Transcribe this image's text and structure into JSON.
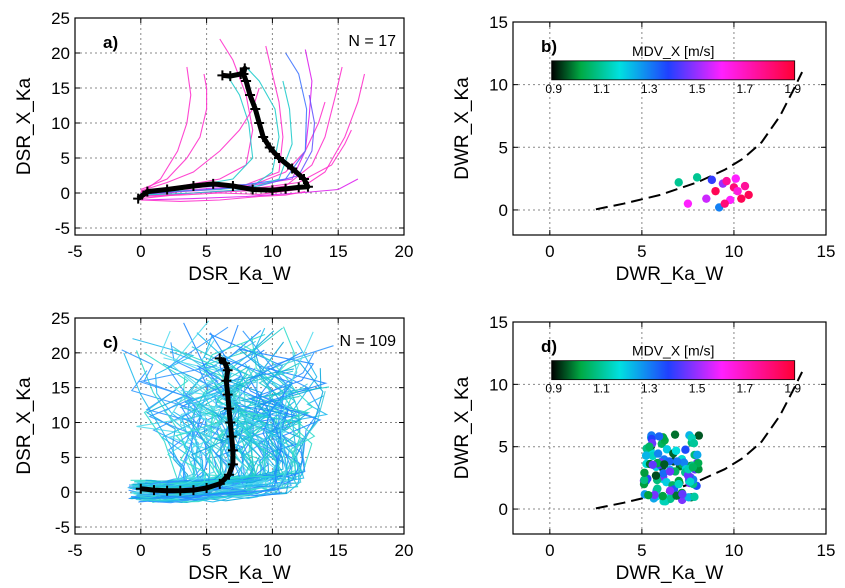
{
  "chart_data": [
    {
      "panel": "a",
      "type": "line",
      "panel_label": "a)",
      "annotation": "N = 17",
      "xlabel": "DSR_Ka_W",
      "ylabel": "DSR_X_Ka",
      "xlim": [
        -5,
        20
      ],
      "ylim": [
        -6,
        25
      ],
      "xticks": [
        "-5",
        "0",
        "5",
        "10",
        "15",
        "20"
      ],
      "yticks": [
        "-5",
        "0",
        "5",
        "10",
        "15",
        "20",
        "25"
      ],
      "grid": true,
      "mean_curve": [
        [
          -0.2,
          -0.8
        ],
        [
          0.5,
          0.2
        ],
        [
          2,
          0.5
        ],
        [
          4,
          1
        ],
        [
          5.5,
          1.3
        ],
        [
          7,
          1
        ],
        [
          8.5,
          0.5
        ],
        [
          10,
          0.4
        ],
        [
          11,
          0.6
        ],
        [
          12,
          0.8
        ],
        [
          12.7,
          0.9
        ],
        [
          12.4,
          2
        ],
        [
          11.5,
          3.5
        ],
        [
          10.5,
          5
        ],
        [
          9.8,
          6.5
        ],
        [
          9.3,
          8
        ],
        [
          9,
          10
        ],
        [
          8.7,
          12
        ],
        [
          8.3,
          14
        ],
        [
          8,
          16
        ],
        [
          7.8,
          17
        ],
        [
          7.9,
          17.8
        ],
        [
          7.6,
          17
        ],
        [
          6.8,
          16.7
        ],
        [
          6.2,
          16.8
        ]
      ],
      "traces": [
        {
          "color": "#ff33cc",
          "points": [
            [
              0,
              -0.5
            ],
            [
              3,
              -0.3
            ],
            [
              6,
              0
            ],
            [
              9,
              -0.2
            ],
            [
              12,
              0.5
            ],
            [
              14,
              3
            ],
            [
              15.5,
              8
            ],
            [
              16.5,
              13
            ],
            [
              17,
              17
            ]
          ]
        },
        {
          "color": "#ff33cc",
          "points": [
            [
              0,
              -0.8
            ],
            [
              4,
              0
            ],
            [
              8,
              0.3
            ],
            [
              11,
              1
            ],
            [
              13,
              4
            ],
            [
              14,
              8
            ],
            [
              14.8,
              14
            ],
            [
              15.3,
              18
            ]
          ]
        },
        {
          "color": "#dd22ee",
          "points": [
            [
              0,
              -0.3
            ],
            [
              4,
              0.5
            ],
            [
              8,
              1
            ],
            [
              11.5,
              2
            ],
            [
              12.5,
              6
            ],
            [
              12.8,
              11
            ],
            [
              13,
              16
            ],
            [
              12.5,
              20.5
            ]
          ]
        },
        {
          "color": "#ff33cc",
          "points": [
            [
              0,
              0
            ],
            [
              4,
              0.8
            ],
            [
              8,
              1.2
            ],
            [
              10.5,
              3
            ],
            [
              10.8,
              8
            ],
            [
              10.5,
              13
            ],
            [
              10,
              17
            ],
            [
              9.5,
              21
            ]
          ]
        },
        {
          "color": "#ff33cc",
          "points": [
            [
              0,
              0.2
            ],
            [
              3,
              1
            ],
            [
              6,
              2
            ],
            [
              8,
              4
            ],
            [
              8.5,
              9
            ],
            [
              8,
              14
            ],
            [
              7,
              19
            ],
            [
              6,
              22
            ]
          ]
        },
        {
          "color": "#ff33cc",
          "points": [
            [
              0,
              -0.5
            ],
            [
              3,
              0.2
            ],
            [
              6,
              0.5
            ],
            [
              9,
              1.5
            ],
            [
              11,
              3
            ],
            [
              12.5,
              6
            ],
            [
              13.5,
              10
            ],
            [
              14,
              13
            ]
          ]
        },
        {
          "color": "#22cccc",
          "points": [
            [
              0,
              -0.2
            ],
            [
              3,
              0.3
            ],
            [
              6,
              0.5
            ],
            [
              8.5,
              1
            ],
            [
              10,
              3
            ],
            [
              10.5,
              8
            ],
            [
              10.2,
              12
            ],
            [
              9,
              16
            ],
            [
              8,
              18
            ]
          ]
        },
        {
          "color": "#22cccc",
          "points": [
            [
              0,
              0
            ],
            [
              4,
              1
            ],
            [
              7,
              2
            ],
            [
              8.5,
              5
            ],
            [
              8.2,
              10
            ],
            [
              7.5,
              14
            ],
            [
              6.5,
              17
            ]
          ]
        },
        {
          "color": "#4477ff",
          "points": [
            [
              0,
              0
            ],
            [
              4,
              0.8
            ],
            [
              8,
              1.2
            ],
            [
              11,
              2
            ],
            [
              12.5,
              6
            ],
            [
              12.6,
              12
            ],
            [
              12,
              17
            ],
            [
              11,
              20
            ]
          ]
        },
        {
          "color": "#6655ff",
          "points": [
            [
              0,
              -0.2
            ],
            [
              5,
              0.5
            ],
            [
              9,
              1
            ],
            [
              12,
              2.5
            ],
            [
              13,
              6
            ],
            [
              13.2,
              10
            ],
            [
              12.8,
              14
            ]
          ]
        },
        {
          "color": "#ff33cc",
          "points": [
            [
              0,
              0.5
            ],
            [
              2,
              2
            ],
            [
              3.5,
              5
            ],
            [
              4.5,
              8
            ],
            [
              5,
              12
            ],
            [
              5,
              15
            ],
            [
              4.8,
              17
            ]
          ]
        },
        {
          "color": "#ff33cc",
          "points": [
            [
              0,
              0.3
            ],
            [
              2,
              1.5
            ],
            [
              4,
              3
            ],
            [
              6,
              6
            ],
            [
              7.5,
              9
            ],
            [
              8.5,
              12
            ],
            [
              9,
              15
            ]
          ]
        },
        {
          "color": "#ff33cc",
          "points": [
            [
              0,
              0
            ],
            [
              1.5,
              2
            ],
            [
              2.8,
              6
            ],
            [
              3.5,
              10
            ],
            [
              3.8,
              14
            ],
            [
              3.5,
              18
            ]
          ]
        },
        {
          "color": "#ff33cc",
          "points": [
            [
              0,
              -0.5
            ],
            [
              4,
              0
            ],
            [
              8,
              0.5
            ],
            [
              12,
              1.5
            ],
            [
              14.5,
              4
            ],
            [
              15.5,
              7
            ],
            [
              16,
              9
            ]
          ]
        },
        {
          "color": "#22cccc",
          "points": [
            [
              0,
              -0.3
            ],
            [
              4,
              0
            ],
            [
              8,
              0.5
            ],
            [
              10.5,
              2
            ],
            [
              11.5,
              7
            ],
            [
              11.3,
              12
            ],
            [
              10.8,
              16
            ]
          ]
        },
        {
          "color": "#dd22ee",
          "points": [
            [
              0,
              -1
            ],
            [
              4,
              -0.8
            ],
            [
              8,
              -0.5
            ],
            [
              12,
              0
            ],
            [
              15,
              0.5
            ],
            [
              16.5,
              2
            ]
          ]
        },
        {
          "color": "#ff33cc",
          "points": [
            [
              0,
              -1
            ],
            [
              3,
              -1.2
            ],
            [
              6,
              -1
            ],
            [
              9,
              -0.5
            ],
            [
              11,
              -0.3
            ],
            [
              12.5,
              0.2
            ]
          ]
        }
      ]
    },
    {
      "panel": "b",
      "type": "scatter",
      "panel_label": "b)",
      "xlabel": "DWR_Ka_W",
      "ylabel": "DWR_X_Ka",
      "xlim": [
        -2,
        15
      ],
      "ylim": [
        -2,
        15
      ],
      "xticks": [
        "0",
        "5",
        "10",
        "15"
      ],
      "yticks": [
        "0",
        "5",
        "10",
        "15"
      ],
      "grid": true,
      "colorbar": {
        "title": "MDV_X [m/s]",
        "range": [
          0.9,
          1.9
        ],
        "ticks": [
          "0.9",
          "1.1",
          "1.3",
          "1.5",
          "1.7",
          "1.9"
        ]
      },
      "reference_curve": [
        [
          2.5,
          0.05
        ],
        [
          4,
          0.5
        ],
        [
          6,
          1.2
        ],
        [
          8,
          2.2
        ],
        [
          9.5,
          3.2
        ],
        [
          10.5,
          4.1
        ],
        [
          11.5,
          5.4
        ],
        [
          12.5,
          7.5
        ],
        [
          13.2,
          9.5
        ],
        [
          13.7,
          11
        ]
      ],
      "points": [
        {
          "x": 7.5,
          "y": 0.5,
          "c": 1.6
        },
        {
          "x": 8,
          "y": 2.6,
          "c": 1.1
        },
        {
          "x": 8.8,
          "y": 2.4,
          "c": 1.4
        },
        {
          "x": 9,
          "y": 1.5,
          "c": 1.85
        },
        {
          "x": 9.2,
          "y": 0.2,
          "c": 1.3
        },
        {
          "x": 9.4,
          "y": 2.1,
          "c": 1.5
        },
        {
          "x": 9.6,
          "y": 2.3,
          "c": 1.75
        },
        {
          "x": 9.8,
          "y": 0.8,
          "c": 1.6
        },
        {
          "x": 10,
          "y": 1.8,
          "c": 1.8
        },
        {
          "x": 10.2,
          "y": 1.5,
          "c": 1.65
        },
        {
          "x": 10.4,
          "y": 0.9,
          "c": 1.85
        },
        {
          "x": 10.6,
          "y": 1.9,
          "c": 1.75
        },
        {
          "x": 10.8,
          "y": 1.2,
          "c": 1.85
        },
        {
          "x": 7,
          "y": 2.2,
          "c": 1.1
        },
        {
          "x": 9.5,
          "y": 0.5,
          "c": 1.8
        },
        {
          "x": 8.5,
          "y": 0.9,
          "c": 1.55
        },
        {
          "x": 10.1,
          "y": 2.5,
          "c": 1.6
        }
      ]
    },
    {
      "panel": "c",
      "type": "line",
      "panel_label": "c)",
      "annotation": "N = 109",
      "xlabel": "DSR_Ka_W",
      "ylabel": "DSR_X_Ka",
      "xlim": [
        -5,
        20
      ],
      "ylim": [
        -6,
        25
      ],
      "xticks": [
        "-5",
        "0",
        "5",
        "10",
        "15",
        "20"
      ],
      "yticks": [
        "-5",
        "0",
        "5",
        "10",
        "15",
        "20",
        "25"
      ],
      "grid": true,
      "mean_curve": [
        [
          0,
          0.5
        ],
        [
          1,
          0.3
        ],
        [
          2,
          0.2
        ],
        [
          3,
          0.2
        ],
        [
          4,
          0.3
        ],
        [
          5,
          0.6
        ],
        [
          6,
          1.2
        ],
        [
          6.7,
          2.5
        ],
        [
          7,
          4
        ],
        [
          7,
          6
        ],
        [
          6.9,
          8
        ],
        [
          6.8,
          10
        ],
        [
          6.7,
          12
        ],
        [
          6.6,
          14
        ],
        [
          6.5,
          16
        ],
        [
          6.6,
          17.5
        ],
        [
          6.4,
          18.5
        ],
        [
          6,
          19.2
        ]
      ],
      "traces": []
    },
    {
      "panel": "d",
      "type": "scatter",
      "panel_label": "d)",
      "xlabel": "DWR_Ka_W",
      "ylabel": "DWR_X_Ka",
      "xlim": [
        -2,
        15
      ],
      "ylim": [
        -2,
        15
      ],
      "xticks": [
        "0",
        "5",
        "10",
        "15"
      ],
      "yticks": [
        "0",
        "5",
        "10",
        "15"
      ],
      "grid": true,
      "colorbar": {
        "title": "MDV_X [m/s]",
        "range": [
          0.9,
          1.9
        ],
        "ticks": [
          "0.9",
          "1.1",
          "1.3",
          "1.5",
          "1.7",
          "1.9"
        ]
      },
      "reference_curve": [
        [
          2.5,
          0.05
        ],
        [
          4,
          0.5
        ],
        [
          6,
          1.2
        ],
        [
          8,
          2.2
        ],
        [
          9.5,
          3.2
        ],
        [
          10.5,
          4.1
        ],
        [
          11.5,
          5.4
        ],
        [
          12.5,
          7.5
        ],
        [
          13.2,
          9.5
        ],
        [
          13.7,
          11
        ]
      ],
      "points": []
    }
  ]
}
